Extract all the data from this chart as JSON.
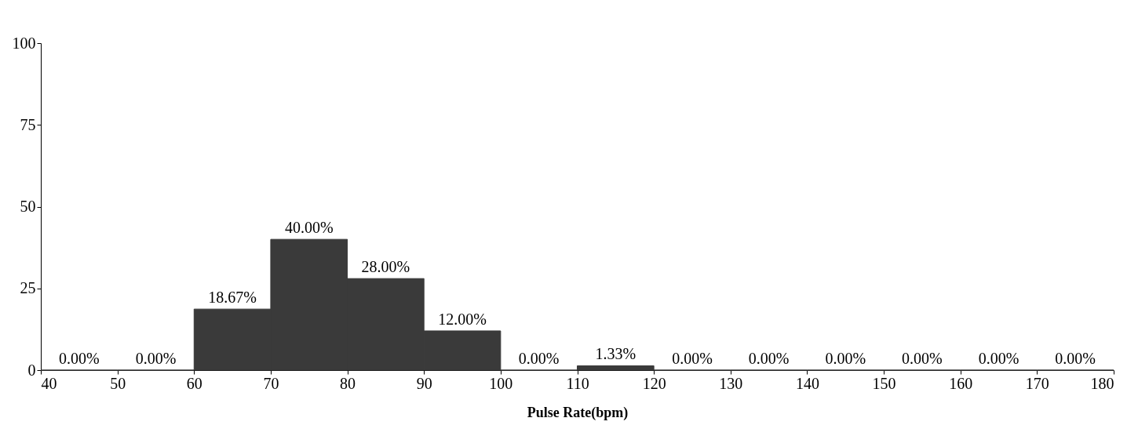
{
  "chart_data": {
    "type": "histogram",
    "xlabel": "Pulse Rate(bpm)",
    "bins": [
      40,
      50,
      60,
      70,
      80,
      90,
      100,
      110,
      120,
      130,
      140,
      150,
      160,
      170,
      180
    ],
    "values": [
      0,
      0,
      18.67,
      40,
      28,
      12,
      0,
      1.33,
      0,
      0,
      0,
      0,
      0,
      0
    ],
    "value_labels": [
      "0.00%",
      "0.00%",
      "18.67%",
      "40.00%",
      "28.00%",
      "12.00%",
      "0.00%",
      "1.33%",
      "0.00%",
      "0.00%",
      "0.00%",
      "0.00%",
      "0.00%",
      "0.00%"
    ],
    "color": "#3a3a3a",
    "xlim": [
      40,
      180
    ],
    "xticks": [
      40,
      50,
      60,
      70,
      80,
      90,
      100,
      110,
      120,
      130,
      140,
      150,
      160,
      170,
      180
    ],
    "ylim": [
      0,
      100
    ],
    "yticks": [
      0,
      25,
      50,
      75,
      100
    ]
  }
}
